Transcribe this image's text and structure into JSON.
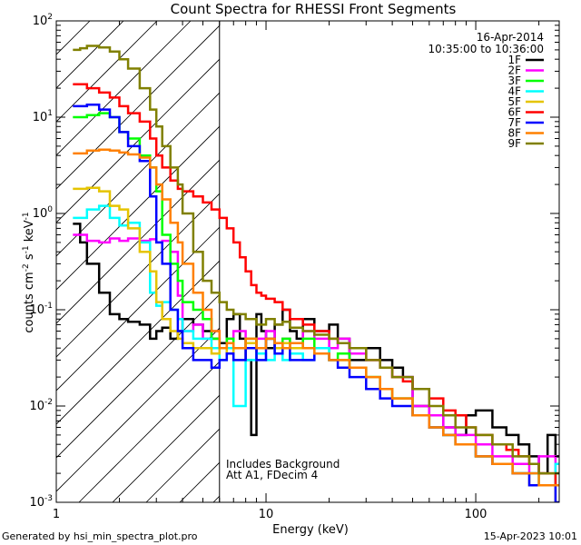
{
  "chart_data": {
    "type": "line",
    "title": "Count Spectra for RHESSI Front Segments",
    "xlabel": "Energy (keV)",
    "ylabel_parts": {
      "a": "counts cm",
      "b": "-2",
      "c": " s",
      "d": "-1",
      "e": " keV",
      "f": "-1"
    },
    "xscale": "log",
    "yscale": "log",
    "xlim": [
      1,
      250
    ],
    "ylim": [
      0.001,
      100
    ],
    "x_ticks": [
      {
        "v": 1,
        "label": "1"
      },
      {
        "v": 10,
        "label": "10"
      },
      {
        "v": 100,
        "label": "100"
      }
    ],
    "y_ticks": [
      {
        "v": 0.001,
        "base": "10",
        "exp": "-3"
      },
      {
        "v": 0.01,
        "base": "10",
        "exp": "-2"
      },
      {
        "v": 0.1,
        "base": "10",
        "exp": "-1"
      },
      {
        "v": 1,
        "base": "10",
        "exp": "0"
      },
      {
        "v": 10,
        "base": "10",
        "exp": "1"
      },
      {
        "v": 100,
        "base": "10",
        "exp": "2"
      }
    ],
    "date": "16-Apr-2014",
    "time_range": "10:35:00 to 10:36:00",
    "annotation": [
      "Includes Background",
      "Att A1, FDecim 4"
    ],
    "vertical_line_energy": 6,
    "hatched_region_energy": [
      1,
      6
    ],
    "footer_left": "Generated by hsi_min_spectra_plot.pro",
    "footer_right": "15-Apr-2023 10:01",
    "series": [
      {
        "name": "1F",
        "color": "#000000",
        "x": [
          1.2,
          1.3,
          1.4,
          1.6,
          1.8,
          2,
          2.2,
          2.5,
          2.8,
          3,
          3.2,
          3.5,
          3.8,
          4,
          4.5,
          5,
          5.5,
          6,
          6.5,
          7,
          7.5,
          8,
          8.5,
          9,
          9.5,
          10,
          11,
          12,
          13,
          14,
          15,
          17,
          20,
          22,
          25,
          30,
          35,
          40,
          45,
          50,
          60,
          70,
          80,
          90,
          100,
          120,
          140,
          160,
          180,
          200,
          220,
          240
        ],
        "values": [
          0.78,
          0.5,
          0.3,
          0.15,
          0.09,
          0.08,
          0.075,
          0.07,
          0.05,
          0.06,
          0.065,
          0.05,
          0.06,
          0.08,
          0.07,
          0.06,
          0.05,
          0.045,
          0.08,
          0.09,
          0.05,
          0.03,
          0.005,
          0.09,
          0.06,
          0.04,
          0.07,
          0.1,
          0.06,
          0.05,
          0.08,
          0.06,
          0.07,
          0.05,
          0.03,
          0.04,
          0.03,
          0.025,
          0.02,
          0.01,
          0.008,
          0.006,
          0.005,
          0.008,
          0.009,
          0.006,
          0.005,
          0.004,
          0.003,
          0.002,
          0.005,
          0.003
        ]
      },
      {
        "name": "2F",
        "color": "#ff00ff",
        "x": [
          1.2,
          1.4,
          1.6,
          1.8,
          2,
          2.2,
          2.5,
          2.8,
          3,
          3.2,
          3.5,
          3.8,
          4,
          4.5,
          5,
          5.5,
          6,
          6.5,
          7,
          8,
          9,
          10,
          11,
          12,
          13,
          15,
          17,
          20,
          22,
          25,
          30,
          35,
          40,
          50,
          60,
          70,
          80,
          100,
          120,
          150,
          180,
          200,
          240
        ],
        "values": [
          0.6,
          0.52,
          0.5,
          0.55,
          0.52,
          0.55,
          0.52,
          0.54,
          0.5,
          0.52,
          0.4,
          0.14,
          0.06,
          0.07,
          0.05,
          0.06,
          0.04,
          0.05,
          0.06,
          0.04,
          0.05,
          0.06,
          0.04,
          0.05,
          0.04,
          0.06,
          0.05,
          0.04,
          0.05,
          0.035,
          0.03,
          0.025,
          0.02,
          0.01,
          0.008,
          0.006,
          0.005,
          0.004,
          0.003,
          0.0025,
          0.002,
          0.003,
          0.002
        ]
      },
      {
        "name": "3F",
        "color": "#00ff00",
        "x": [
          1.2,
          1.4,
          1.6,
          1.8,
          2,
          2.2,
          2.5,
          2.8,
          3,
          3.2,
          3.5,
          3.8,
          4,
          4.5,
          5,
          5.5,
          6,
          6.5,
          7,
          8,
          9,
          10,
          11,
          12,
          13,
          15,
          17,
          20,
          22,
          25,
          30,
          35,
          40,
          50,
          60,
          70,
          80,
          100,
          120,
          150,
          180,
          200,
          240
        ],
        "values": [
          10,
          10.5,
          11,
          10,
          7,
          6,
          4,
          3,
          1.7,
          0.6,
          0.3,
          0.2,
          0.12,
          0.1,
          0.08,
          0.05,
          0.04,
          0.05,
          0.04,
          0.05,
          0.04,
          0.05,
          0.04,
          0.05,
          0.04,
          0.05,
          0.04,
          0.03,
          0.035,
          0.025,
          0.02,
          0.015,
          0.012,
          0.008,
          0.006,
          0.005,
          0.004,
          0.003,
          0.0025,
          0.002,
          0.002,
          0.0015,
          0.002
        ]
      },
      {
        "name": "4F",
        "color": "#00ffff",
        "x": [
          1.2,
          1.4,
          1.6,
          1.8,
          2,
          2.2,
          2.5,
          2.8,
          3,
          3.2,
          3.5,
          3.8,
          4,
          4.5,
          5,
          5.5,
          6,
          6.5,
          7,
          8,
          9,
          10,
          11,
          12,
          13,
          15,
          17,
          20,
          22,
          25,
          30,
          35,
          40,
          50,
          60,
          70,
          80,
          100,
          120,
          150,
          180,
          200,
          240
        ],
        "values": [
          0.9,
          1.1,
          1.2,
          0.9,
          0.75,
          0.8,
          0.5,
          0.15,
          0.11,
          0.12,
          0.1,
          0.08,
          0.06,
          0.05,
          0.05,
          0.04,
          0.03,
          0.04,
          0.01,
          0.03,
          0.035,
          0.03,
          0.04,
          0.03,
          0.035,
          0.03,
          0.04,
          0.03,
          0.03,
          0.025,
          0.02,
          0.015,
          0.012,
          0.008,
          0.006,
          0.005,
          0.004,
          0.003,
          0.0025,
          0.002,
          0.002,
          0.0015,
          0.0025
        ]
      },
      {
        "name": "5F",
        "color": "#e5c400",
        "x": [
          1.2,
          1.4,
          1.6,
          1.8,
          2,
          2.2,
          2.5,
          2.8,
          3,
          3.2,
          3.5,
          3.8,
          4,
          4.5,
          5,
          5.5,
          6,
          6.5,
          7,
          8,
          9,
          10,
          11,
          12,
          13,
          15,
          17,
          20,
          22,
          25,
          30,
          35,
          40,
          50,
          60,
          70,
          80,
          100,
          120,
          150,
          180,
          200,
          240
        ],
        "values": [
          1.8,
          1.85,
          1.7,
          1.2,
          1.1,
          0.7,
          0.4,
          0.25,
          0.12,
          0.08,
          0.06,
          0.05,
          0.045,
          0.04,
          0.04,
          0.035,
          0.04,
          0.035,
          0.04,
          0.045,
          0.04,
          0.05,
          0.04,
          0.045,
          0.04,
          0.04,
          0.035,
          0.03,
          0.03,
          0.025,
          0.02,
          0.015,
          0.012,
          0.008,
          0.006,
          0.005,
          0.004,
          0.003,
          0.0025,
          0.002,
          0.0015,
          0.0015,
          0.001
        ]
      },
      {
        "name": "6F",
        "color": "#ff0000",
        "x": [
          1.2,
          1.4,
          1.6,
          1.8,
          2,
          2.2,
          2.5,
          2.8,
          3,
          3.2,
          3.5,
          3.8,
          4,
          4.5,
          5,
          5.5,
          6,
          6.5,
          7,
          7.5,
          8,
          8.5,
          9,
          9.5,
          10,
          11,
          12,
          13,
          15,
          17,
          20,
          22,
          25,
          30,
          35,
          40,
          45,
          50,
          60,
          70,
          80,
          90,
          100,
          120,
          140,
          160,
          180,
          200,
          220,
          240
        ],
        "values": [
          22,
          20,
          18,
          16,
          13,
          11,
          9,
          6,
          4,
          3,
          2.2,
          1.8,
          1.7,
          1.5,
          1.3,
          1.1,
          0.9,
          0.7,
          0.5,
          0.35,
          0.25,
          0.18,
          0.15,
          0.14,
          0.13,
          0.12,
          0.1,
          0.08,
          0.07,
          0.06,
          0.05,
          0.045,
          0.04,
          0.03,
          0.025,
          0.02,
          0.018,
          0.015,
          0.012,
          0.009,
          0.008,
          0.006,
          0.005,
          0.004,
          0.0035,
          0.003,
          0.0025,
          0.002,
          0.002,
          0.0015
        ]
      },
      {
        "name": "7F",
        "color": "#0000ff",
        "x": [
          1.2,
          1.4,
          1.6,
          1.8,
          2,
          2.2,
          2.5,
          2.8,
          3,
          3.2,
          3.5,
          3.8,
          4,
          4.5,
          5,
          5.5,
          6,
          6.5,
          7,
          8,
          9,
          10,
          11,
          12,
          13,
          15,
          17,
          20,
          22,
          25,
          30,
          35,
          40,
          50,
          60,
          70,
          80,
          100,
          120,
          150,
          180,
          200,
          240
        ],
        "values": [
          13,
          13.5,
          12,
          10,
          7,
          5,
          3.5,
          1.5,
          0.5,
          0.3,
          0.1,
          0.06,
          0.04,
          0.03,
          0.03,
          0.025,
          0.03,
          0.035,
          0.03,
          0.04,
          0.03,
          0.05,
          0.035,
          0.04,
          0.03,
          0.03,
          0.035,
          0.03,
          0.025,
          0.02,
          0.015,
          0.012,
          0.01,
          0.008,
          0.006,
          0.005,
          0.004,
          0.003,
          0.0025,
          0.002,
          0.0015,
          0.0015,
          0.001
        ]
      },
      {
        "name": "8F",
        "color": "#ff8000",
        "x": [
          1.2,
          1.4,
          1.6,
          1.8,
          2,
          2.2,
          2.5,
          2.8,
          3,
          3.2,
          3.5,
          3.8,
          4,
          4.5,
          5,
          5.5,
          6,
          6.5,
          7,
          8,
          9,
          10,
          11,
          12,
          13,
          15,
          17,
          20,
          22,
          25,
          30,
          35,
          40,
          50,
          60,
          70,
          80,
          100,
          120,
          150,
          180,
          200,
          240
        ],
        "values": [
          4.2,
          4.5,
          4.6,
          4.5,
          4.3,
          4.1,
          3.8,
          3,
          2,
          1.4,
          0.8,
          0.5,
          0.3,
          0.15,
          0.1,
          0.06,
          0.04,
          0.045,
          0.04,
          0.05,
          0.04,
          0.05,
          0.045,
          0.04,
          0.045,
          0.04,
          0.035,
          0.03,
          0.03,
          0.025,
          0.02,
          0.015,
          0.012,
          0.008,
          0.006,
          0.005,
          0.004,
          0.003,
          0.0025,
          0.002,
          0.002,
          0.0015,
          0.0015
        ]
      },
      {
        "name": "9F",
        "color": "#808000",
        "x": [
          1.2,
          1.3,
          1.4,
          1.6,
          1.8,
          2,
          2.2,
          2.5,
          2.8,
          3,
          3.2,
          3.5,
          3.8,
          4,
          4.5,
          5,
          5.5,
          6,
          6.5,
          7,
          8,
          9,
          10,
          11,
          12,
          13,
          15,
          17,
          20,
          22,
          25,
          30,
          35,
          40,
          50,
          60,
          70,
          80,
          100,
          120,
          150,
          180,
          200,
          240
        ],
        "values": [
          50,
          52,
          55,
          53,
          48,
          40,
          32,
          20,
          12,
          8,
          5,
          3,
          2,
          1,
          0.4,
          0.2,
          0.15,
          0.12,
          0.1,
          0.09,
          0.08,
          0.07,
          0.08,
          0.07,
          0.075,
          0.065,
          0.06,
          0.055,
          0.05,
          0.045,
          0.04,
          0.03,
          0.025,
          0.02,
          0.015,
          0.01,
          0.008,
          0.006,
          0.005,
          0.004,
          0.003,
          0.0025,
          0.002,
          0.002
        ]
      }
    ]
  }
}
